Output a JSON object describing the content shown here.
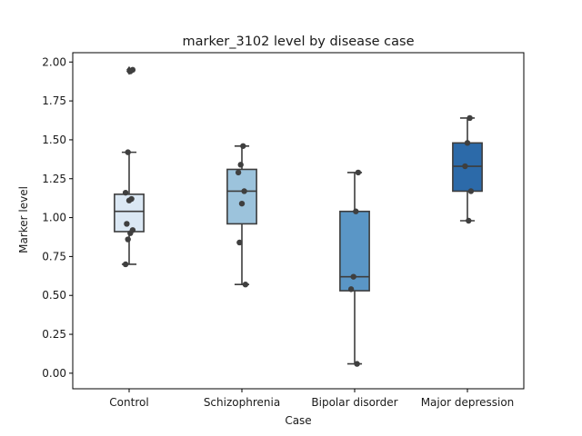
{
  "chart_data": {
    "type": "box",
    "title": "marker_3102 level by disease case",
    "xlabel": "Case",
    "ylabel": "Marker level",
    "ylim": [
      -0.1,
      2.06
    ],
    "yticks": [
      "0.00",
      "0.25",
      "0.50",
      "0.75",
      "1.00",
      "1.25",
      "1.50",
      "1.75",
      "2.00"
    ],
    "categories": [
      "Control",
      "Schizophrenia",
      "Bipolar disorder",
      "Major depression"
    ],
    "colors": [
      "#dbe8f4",
      "#9cc3dc",
      "#5a96c6",
      "#2c6aa9"
    ],
    "edge_color": "#3d3d3d",
    "boxes": [
      {
        "name": "Control",
        "whislo": 0.7,
        "q1": 0.91,
        "med": 1.04,
        "q3": 1.15,
        "whishi": 1.42,
        "fliers": [
          1.94,
          1.95
        ]
      },
      {
        "name": "Schizophrenia",
        "whislo": 0.57,
        "q1": 0.96,
        "med": 1.17,
        "q3": 1.31,
        "whishi": 1.46,
        "fliers": []
      },
      {
        "name": "Bipolar disorder",
        "whislo": 0.06,
        "q1": 0.53,
        "med": 0.62,
        "q3": 1.04,
        "whishi": 1.29,
        "fliers": []
      },
      {
        "name": "Major depression",
        "whislo": 0.98,
        "q1": 1.17,
        "med": 1.33,
        "q3": 1.48,
        "whishi": 1.64,
        "fliers": []
      }
    ],
    "points": [
      [
        0.7,
        0.86,
        0.9,
        0.92,
        0.96,
        1.11,
        1.12,
        1.16,
        1.42,
        1.94,
        1.95
      ],
      [
        0.57,
        0.84,
        1.09,
        1.17,
        1.29,
        1.34,
        1.46
      ],
      [
        0.06,
        0.54,
        0.62,
        1.04,
        1.29
      ],
      [
        0.98,
        1.17,
        1.33,
        1.48,
        1.64
      ]
    ]
  }
}
